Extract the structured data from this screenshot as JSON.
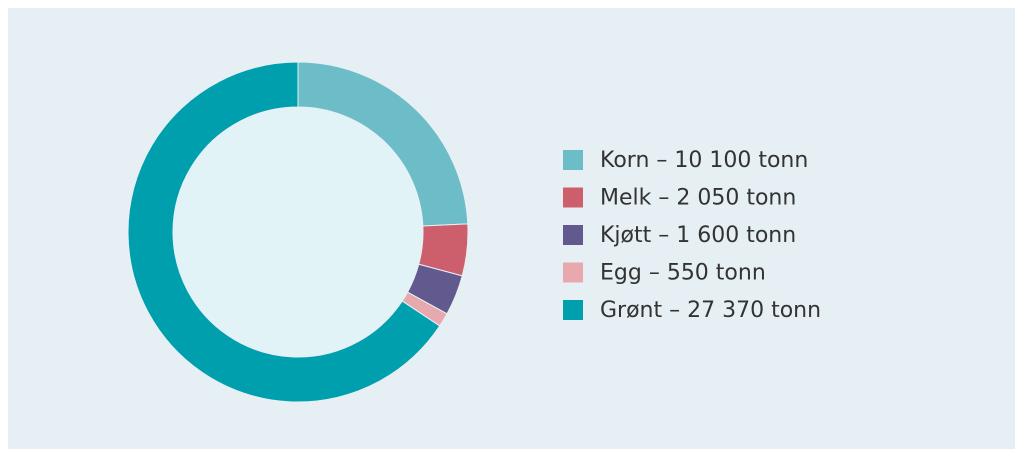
{
  "chart_data": {
    "type": "donut",
    "labels": [
      "Korn – 10 100 tonn",
      "Melk – 2 050 tonn",
      "Kjøtt – 1 600 tonn",
      "Egg – 550 tonn",
      "Grønt – 27 370 tonn"
    ],
    "values": [
      10100,
      2050,
      1600,
      550,
      27370
    ],
    "colors": [
      "#6dbdc8",
      "#cd5f6c",
      "#625a8f",
      "#e8a9ae",
      "#009fae"
    ],
    "legend": "right"
  }
}
